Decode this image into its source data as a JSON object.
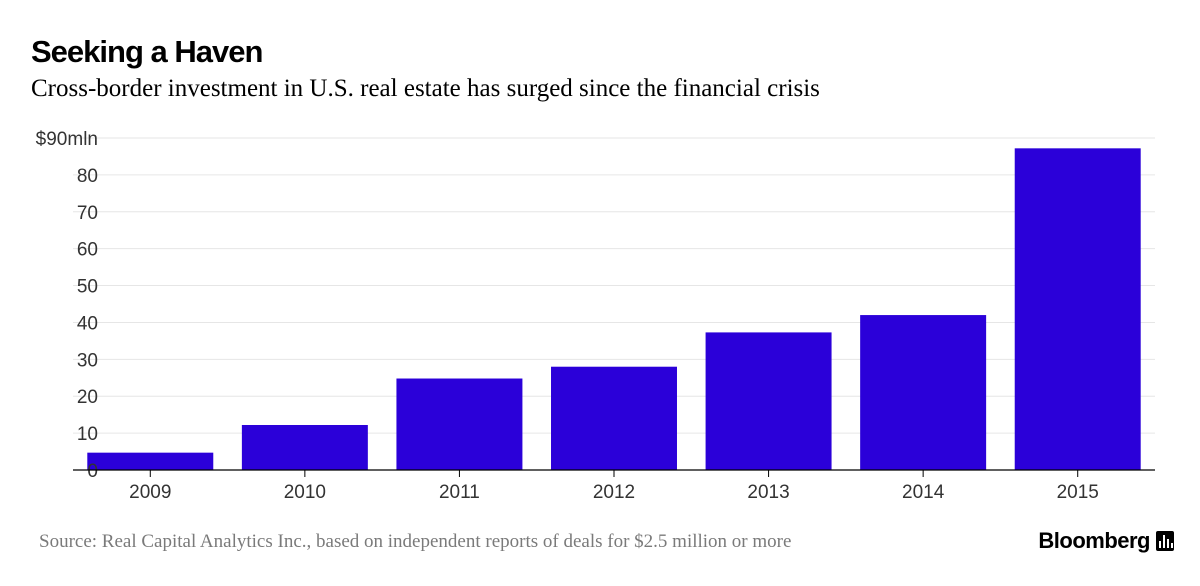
{
  "header": {
    "title": "Seeking a Haven",
    "subtitle": "Cross-border investment in U.S. real estate has surged since the financial crisis"
  },
  "footer": {
    "source": "Source: Real Capital Analytics Inc., based on independent reports of deals for $2.5 million or more",
    "brand": "Bloomberg"
  },
  "colors": {
    "bar": "#2b00d9",
    "grid": "#e6e6e6",
    "axis": "#000000",
    "tick_text": "#333333"
  },
  "chart_data": {
    "type": "bar",
    "title": "Seeking a Haven",
    "subtitle": "Cross-border investment in U.S. real estate has surged since the financial crisis",
    "categories": [
      "2009",
      "2010",
      "2011",
      "2012",
      "2013",
      "2014",
      "2015"
    ],
    "values": [
      4.7,
      12.2,
      24.8,
      28.0,
      37.3,
      42.0,
      87.2
    ],
    "ylim": [
      0,
      90
    ],
    "yticks": [
      0,
      10,
      20,
      30,
      40,
      50,
      60,
      70,
      80,
      90
    ],
    "ytick_labels": [
      "0",
      "10",
      "20",
      "30",
      "40",
      "50",
      "60",
      "70",
      "80",
      "$90mln"
    ],
    "xlabel": "",
    "ylabel": "",
    "grid": true
  }
}
